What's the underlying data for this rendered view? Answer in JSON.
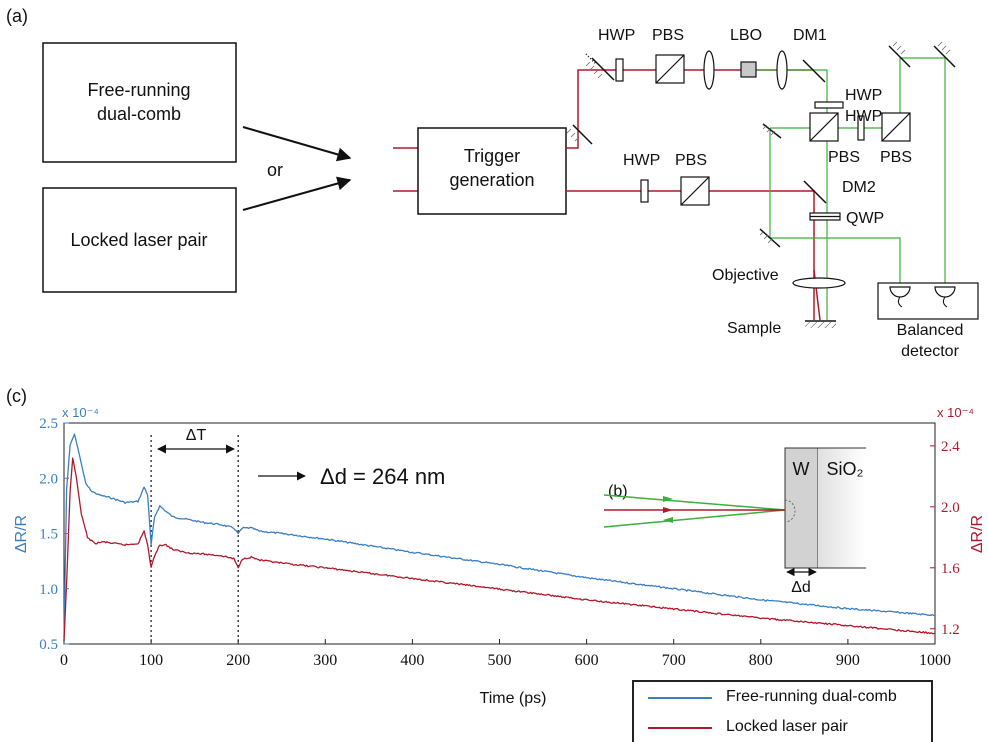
{
  "panel_a": {
    "label": "(a)",
    "source_boxes": [
      "Free-running\ndual-comb",
      "Locked laser pair"
    ],
    "or_label": "or",
    "trigger_box": "Trigger\ngeneration",
    "components": {
      "top_hwp": "HWP",
      "top_pbs": "PBS",
      "lbo": "LBO",
      "dm1": "DM1",
      "bottom_hwp": "HWP",
      "bottom_pbs": "PBS",
      "hwp_right_1": "HWP",
      "hwp_right_2": "HWP",
      "pbs_center": "PBS",
      "pbs_right": "PBS",
      "dm2": "DM2",
      "qwp": "QWP",
      "objective": "Objective",
      "sample": "Sample",
      "detector": "Balanced\ndetector"
    },
    "colors": {
      "red_beam": "#b2182b",
      "green_beam": "#3cae3c"
    }
  },
  "panel_c": {
    "label": "(c)",
    "delta_t_label": "ΔT",
    "delta_d_label": "Δd = 264 nm",
    "legend": [
      "Free-running dual-comb",
      "Locked laser pair"
    ]
  },
  "panel_b": {
    "label": "(b)",
    "w_label": "W",
    "sio2_label": "SiO₂",
    "delta_d": "Δd"
  },
  "chart_data": {
    "type": "line",
    "xlabel": "Time (ps)",
    "xlim": [
      0,
      1000
    ],
    "x_ticks": [
      0,
      100,
      200,
      300,
      400,
      500,
      600,
      700,
      800,
      900,
      1000
    ],
    "left_axis": {
      "label": "ΔR/R",
      "exponent": "x 10⁻⁴",
      "ylim": [
        0.5,
        2.5
      ],
      "ticks": [
        "0.5",
        "1.0",
        "1.5",
        "2.0",
        "2.5"
      ],
      "color": "#3a7fc4"
    },
    "right_axis": {
      "label": "ΔR/R",
      "exponent": "x 10⁻⁴",
      "ylim": [
        1.1,
        2.55
      ],
      "ticks": [
        "1.2",
        "1.6",
        "2.0",
        "2.4"
      ],
      "color": "#b2182b"
    },
    "vertical_markers": [
      100,
      200
    ],
    "series": [
      {
        "name": "Free-running dual-comb",
        "axis": "left",
        "color": "#3a7fc4",
        "x": [
          0,
          3,
          7,
          12,
          18,
          25,
          32,
          40,
          55,
          70,
          85,
          92,
          96,
          100,
          104,
          110,
          117,
          125,
          140,
          160,
          180,
          195,
          200,
          205,
          215,
          225,
          250,
          300,
          400,
          500,
          600,
          700,
          800,
          900,
          1000
        ],
        "y": [
          0.55,
          1.9,
          2.3,
          2.4,
          2.2,
          1.95,
          1.88,
          1.85,
          1.82,
          1.78,
          1.79,
          1.92,
          1.85,
          1.4,
          1.65,
          1.75,
          1.7,
          1.65,
          1.63,
          1.6,
          1.58,
          1.55,
          1.5,
          1.55,
          1.55,
          1.52,
          1.5,
          1.45,
          1.33,
          1.22,
          1.1,
          1.0,
          0.9,
          0.82,
          0.76
        ]
      },
      {
        "name": "Locked laser pair",
        "axis": "right",
        "color": "#b2182b",
        "x": [
          0,
          3,
          7,
          10,
          14,
          20,
          27,
          35,
          45,
          70,
          85,
          92,
          96,
          100,
          104,
          110,
          117,
          125,
          140,
          160,
          180,
          195,
          200,
          205,
          215,
          225,
          250,
          300,
          400,
          500,
          600,
          700,
          800,
          900,
          1000
        ],
        "y": [
          1.12,
          1.5,
          2.1,
          2.32,
          2.2,
          1.95,
          1.8,
          1.76,
          1.77,
          1.75,
          1.76,
          1.84,
          1.75,
          1.6,
          1.68,
          1.75,
          1.75,
          1.72,
          1.7,
          1.69,
          1.68,
          1.66,
          1.6,
          1.66,
          1.67,
          1.65,
          1.63,
          1.6,
          1.53,
          1.46,
          1.39,
          1.33,
          1.27,
          1.22,
          1.17
        ]
      }
    ]
  }
}
